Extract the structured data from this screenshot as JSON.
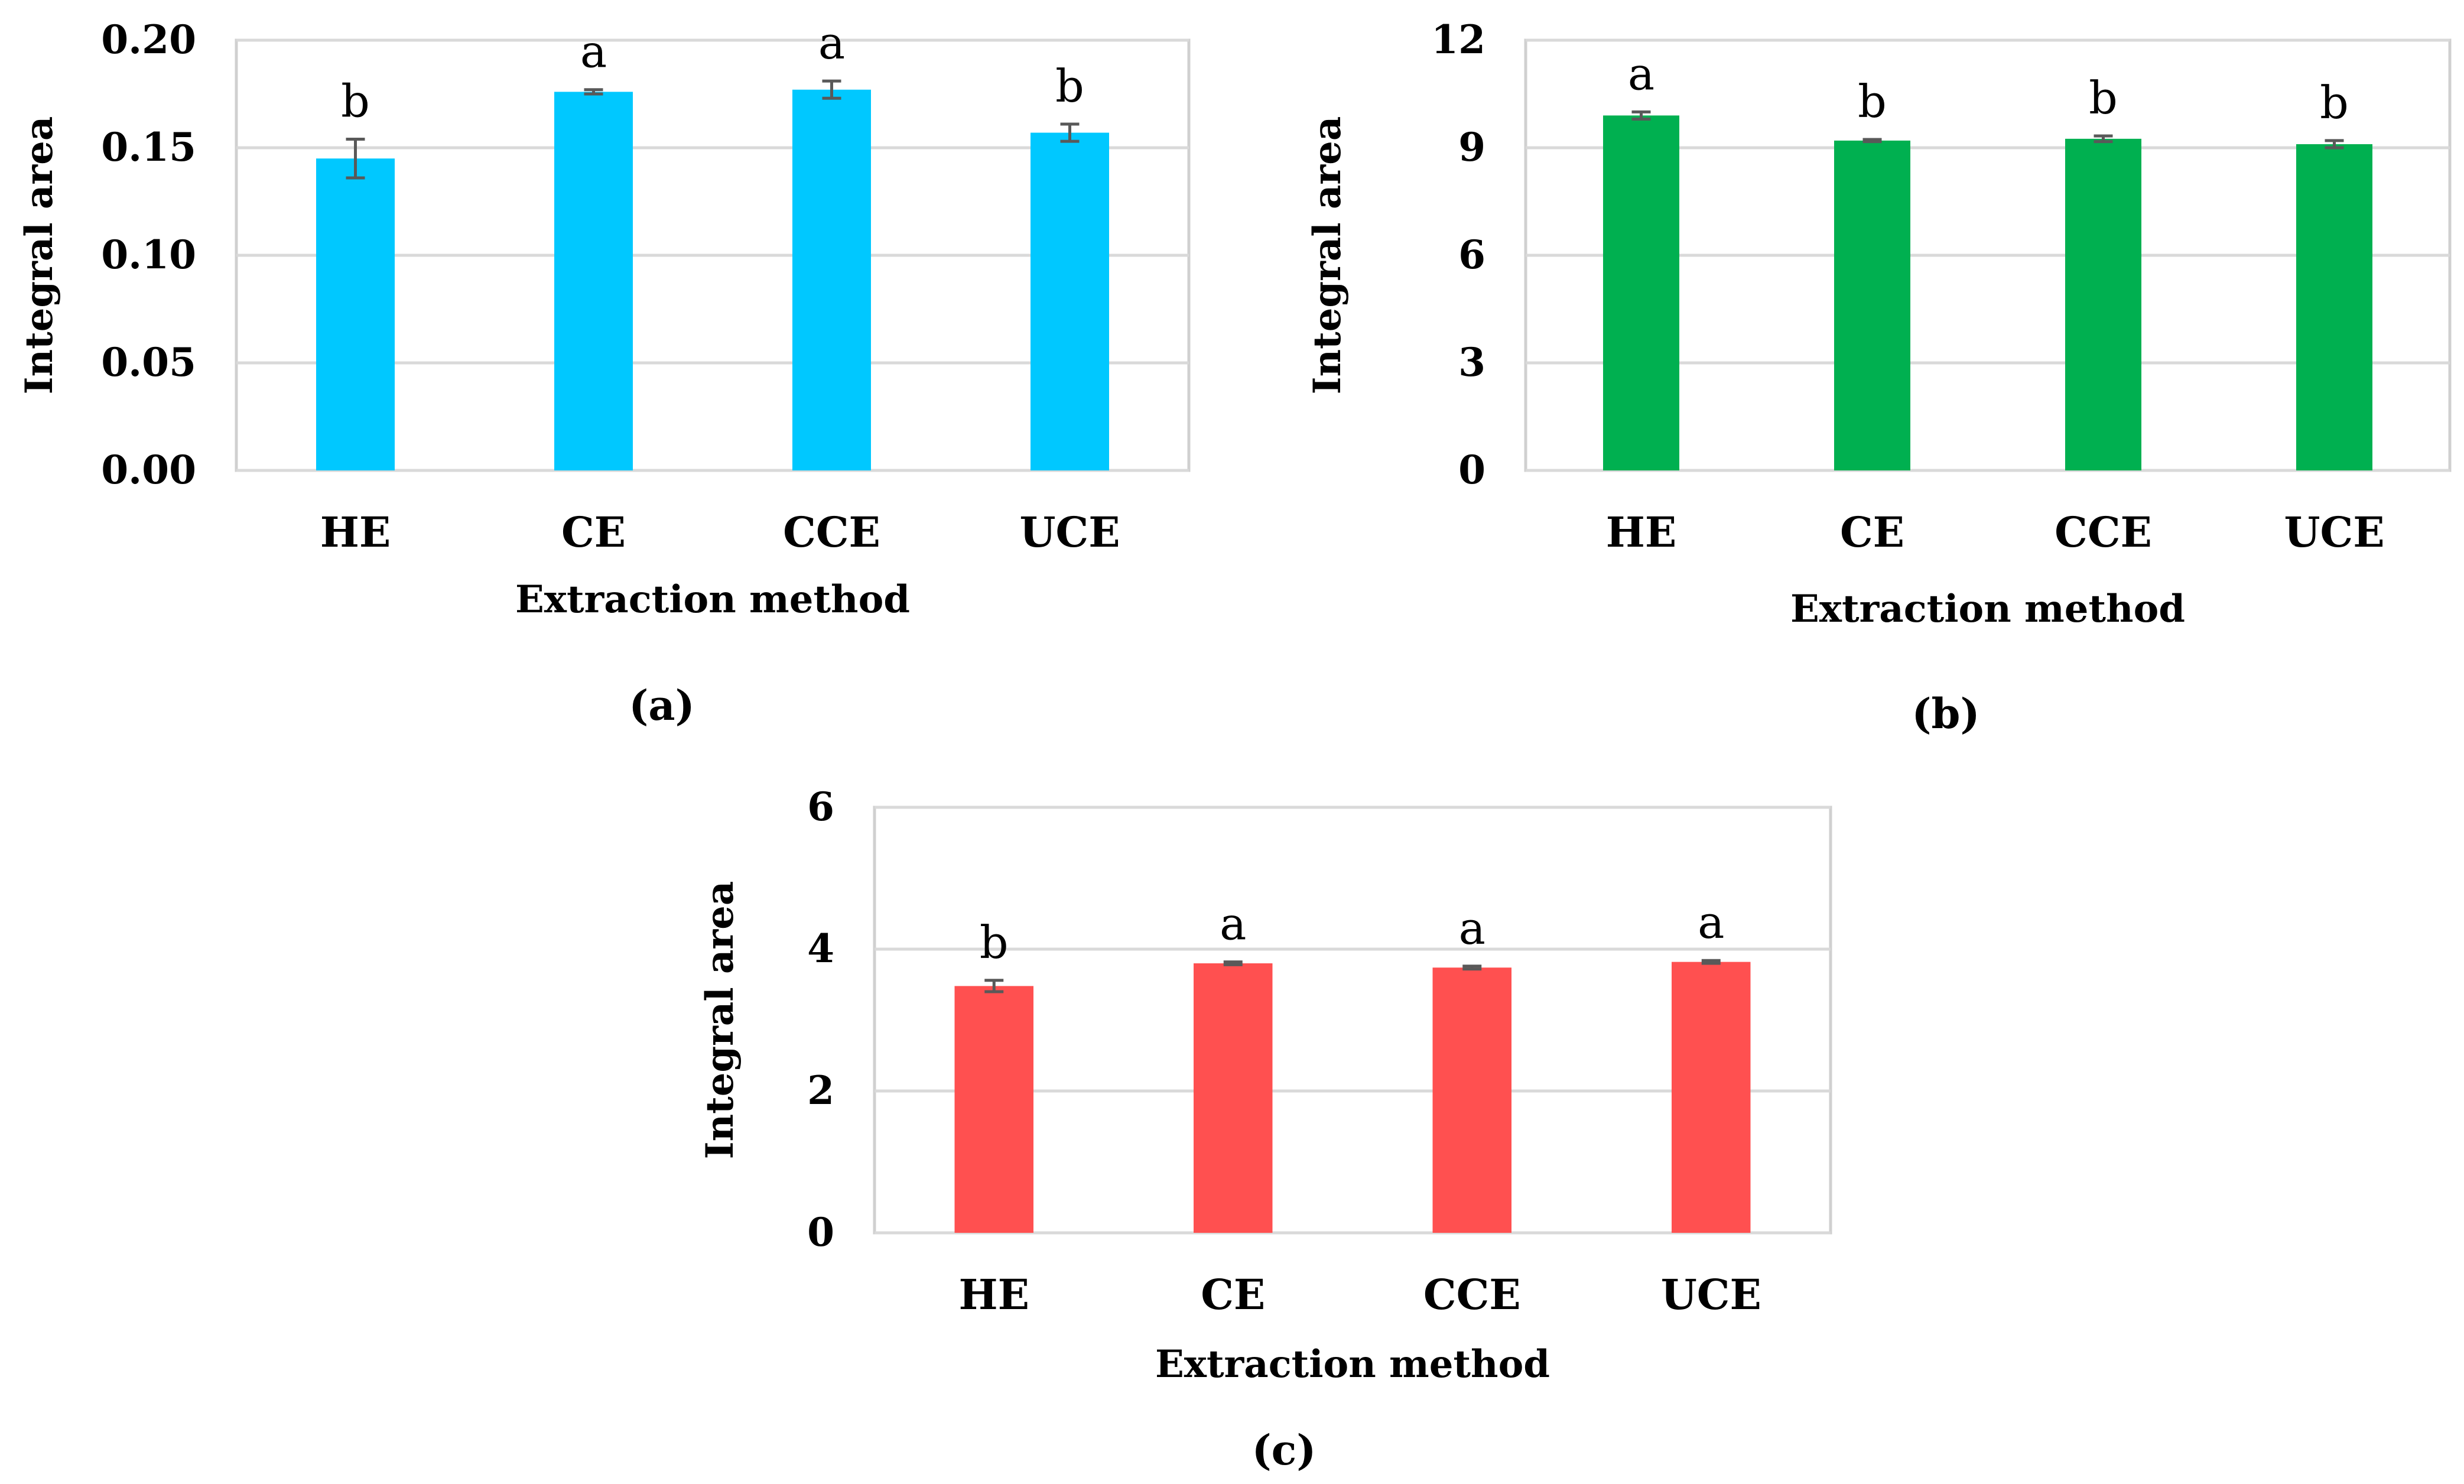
{
  "figure": {
    "panels": [
      "(a)",
      "(b)",
      "(c)"
    ]
  },
  "chart_data": [
    {
      "type": "bar",
      "panel": "(a)",
      "color": "#00C8FF",
      "categories": [
        "HE",
        "CE",
        "CCE",
        "UCE"
      ],
      "values": [
        0.145,
        0.176,
        0.177,
        0.157
      ],
      "errors": [
        0.009,
        0.001,
        0.004,
        0.004
      ],
      "significance": [
        "b",
        "a",
        "a",
        "b"
      ],
      "xlabel": "Extraction method",
      "ylabel": "Integral area",
      "ylim": [
        0,
        0.2
      ],
      "yticks": [
        "0.00",
        "0.05",
        "0.10",
        "0.15",
        "0.20"
      ],
      "grid": true
    },
    {
      "type": "bar",
      "panel": "(b)",
      "color": "#00B050",
      "categories": [
        "HE",
        "CE",
        "CCE",
        "UCE"
      ],
      "values": [
        9.9,
        9.2,
        9.25,
        9.1
      ],
      "errors": [
        0.1,
        0.03,
        0.08,
        0.1
      ],
      "significance": [
        "a",
        "b",
        "b",
        "b"
      ],
      "xlabel": "Extraction method",
      "ylabel": "Integral area",
      "ylim": [
        0,
        12
      ],
      "yticks": [
        "0",
        "3",
        "6",
        "9",
        "12"
      ],
      "grid": true
    },
    {
      "type": "bar",
      "panel": "(c)",
      "color": "#FF5050",
      "categories": [
        "HE",
        "CE",
        "CCE",
        "UCE"
      ],
      "values": [
        3.48,
        3.8,
        3.74,
        3.82
      ],
      "errors": [
        0.08,
        0.02,
        0.02,
        0.02
      ],
      "significance": [
        "b",
        "a",
        "a",
        "a"
      ],
      "xlabel": "Extraction method",
      "ylabel": "Integral area",
      "ylim": [
        0,
        6
      ],
      "yticks": [
        "0",
        "2",
        "4",
        "6"
      ],
      "grid": true
    }
  ]
}
